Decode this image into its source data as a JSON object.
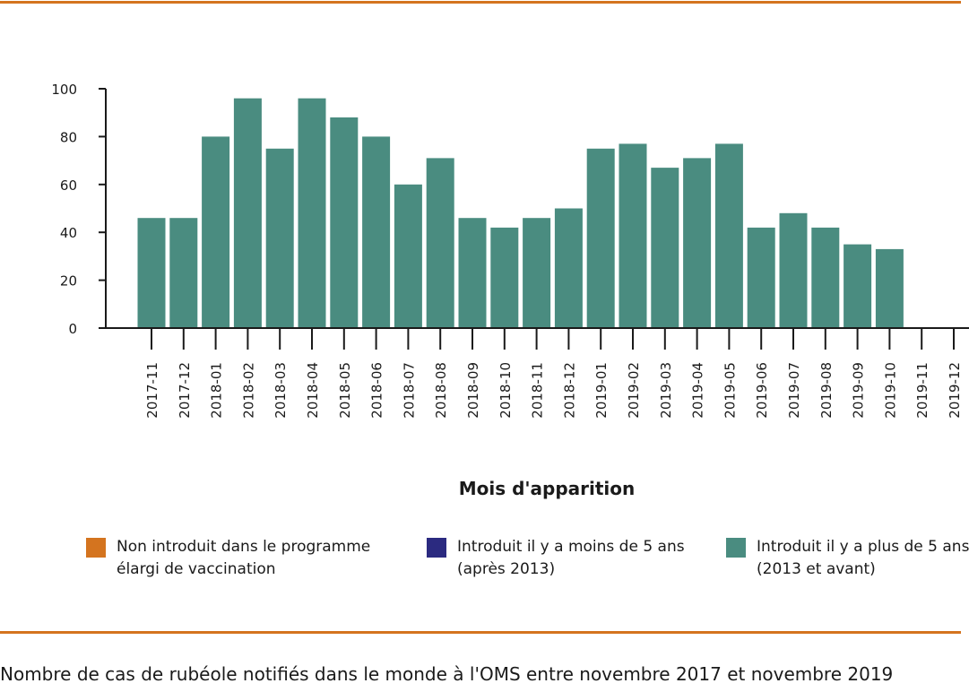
{
  "chart_data": {
    "type": "bar",
    "title": "",
    "xlabel": "Mois d'apparition",
    "ylabel": "",
    "ylim": [
      0,
      100
    ],
    "yticks": [
      0,
      20,
      40,
      60,
      80,
      100
    ],
    "grid": false,
    "categories": [
      "2017-11",
      "2017-12",
      "2018-01",
      "2018-02",
      "2018-03",
      "2018-04",
      "2018-05",
      "2018-06",
      "2018-07",
      "2018-08",
      "2018-09",
      "2018-10",
      "2018-11",
      "2018-12",
      "2019-01",
      "2019-02",
      "2019-03",
      "2019-04",
      "2019-05",
      "2019-06",
      "2019-07",
      "2019-08",
      "2019-09",
      "2019-10",
      "2019-11",
      "2019-12"
    ],
    "series": [
      {
        "name": "Non introduit dans le programme élargi de vaccination",
        "color": "#d4741f",
        "values": [
          0,
          0,
          0,
          0,
          0,
          0,
          0,
          0,
          0,
          0,
          0,
          0,
          0,
          0,
          0,
          0,
          0,
          0,
          0,
          0,
          0,
          0,
          0,
          0,
          0,
          0
        ]
      },
      {
        "name": "Introduit il y a moins de 5 ans (après 2013)",
        "color": "#2b2a80",
        "values": [
          0,
          0,
          0,
          0,
          0,
          0,
          0,
          0,
          0,
          0,
          0,
          0,
          0,
          0,
          0,
          0,
          0,
          0,
          0,
          0,
          0,
          0,
          0,
          0,
          0,
          0
        ]
      },
      {
        "name": "Introduit il y a plus de 5 ans (2013 et avant)",
        "color": "#4a8c80",
        "values": [
          46,
          46,
          80,
          96,
          75,
          96,
          88,
          80,
          60,
          71,
          46,
          42,
          46,
          50,
          75,
          77,
          67,
          71,
          77,
          42,
          48,
          42,
          35,
          33,
          0,
          0
        ]
      }
    ],
    "legend_position": "bottom"
  },
  "legend": {
    "items": [
      {
        "line1": "Non introduit dans le programme",
        "line2": "élargi de vaccination",
        "color": "#d4741f"
      },
      {
        "line1": "Introduit il y a moins de 5 ans",
        "line2": "(après 2013)",
        "color": "#2b2a80"
      },
      {
        "line1": "Introduit il y a plus de 5 ans",
        "line2": "(2013 et avant)",
        "color": "#4a8c80"
      }
    ]
  },
  "caption": "Nombre de cas de rubéole notifiés dans le monde à l'OMS entre novembre 2017 et novembre 2019",
  "colors": {
    "rule": "#d4741f",
    "axis": "#1a1a1a"
  }
}
